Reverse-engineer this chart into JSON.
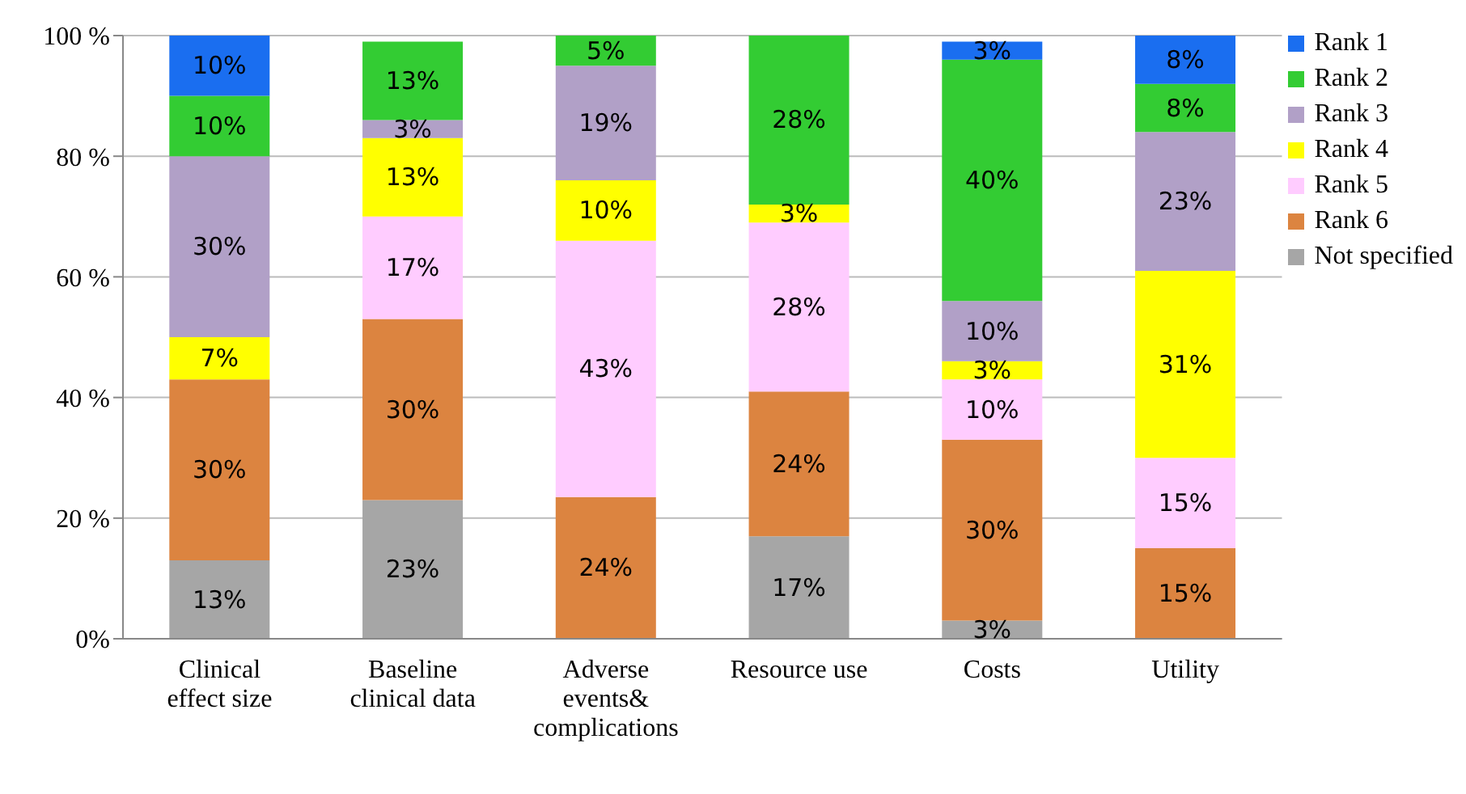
{
  "chart_data": {
    "type": "bar",
    "stacked": true,
    "categories": [
      "Clinical effect size",
      "Baseline clinical data",
      "Adverse events& complications",
      "Resource use",
      "Costs",
      "Utility"
    ],
    "ylim": [
      0,
      100
    ],
    "yticks": [
      {
        "value": 0,
        "label": "0%"
      },
      {
        "value": 20,
        "label": "20 %"
      },
      {
        "value": 40,
        "label": "40 %"
      },
      {
        "value": 60,
        "label": "60 %"
      },
      {
        "value": 80,
        "label": "80 %"
      },
      {
        "value": 100,
        "label": "100 %"
      }
    ],
    "grid": "y",
    "legend": "top right",
    "series": [
      {
        "name": "Not specified",
        "color": "#a6a6a6",
        "values": [
          13,
          23,
          0,
          17,
          3,
          0
        ],
        "value_labels": [
          "13%",
          "23%",
          null,
          "17%",
          "3%",
          null
        ]
      },
      {
        "name": "Rank 6",
        "color": "#dc8440",
        "values": [
          30,
          30,
          23.5,
          24,
          30,
          15
        ],
        "value_labels": [
          "30%",
          "30%",
          "24%",
          "24%",
          "30%",
          "15%"
        ]
      },
      {
        "name": "Rank 5",
        "color": "#ffccff",
        "values": [
          0,
          17,
          42.5,
          28,
          10,
          15
        ],
        "value_labels": [
          null,
          "17%",
          "43%",
          "28%",
          "10%",
          "15%"
        ]
      },
      {
        "name": "Rank 4",
        "color": "#ffff00",
        "values": [
          7,
          13,
          10,
          3,
          3,
          31
        ],
        "value_labels": [
          "7%",
          "13%",
          "10%",
          "3%",
          "3%",
          "31%"
        ]
      },
      {
        "name": "Rank 3",
        "color": "#b1a0c7",
        "values": [
          30,
          3,
          19,
          0,
          10,
          23
        ],
        "value_labels": [
          "30%",
          "3%",
          "19%",
          null,
          "10%",
          "23%"
        ]
      },
      {
        "name": "Rank 2",
        "color": "#33cc33",
        "values": [
          10,
          13,
          5,
          28,
          40,
          8
        ],
        "value_labels": [
          "10%",
          "13%",
          "5%",
          "28%",
          "40%",
          "8%"
        ]
      },
      {
        "name": "Rank 1",
        "color": "#1a6ef0",
        "values": [
          10,
          0,
          0,
          0,
          3,
          8
        ],
        "value_labels": [
          "10%",
          null,
          null,
          null,
          "3%",
          "8%"
        ]
      }
    ]
  }
}
